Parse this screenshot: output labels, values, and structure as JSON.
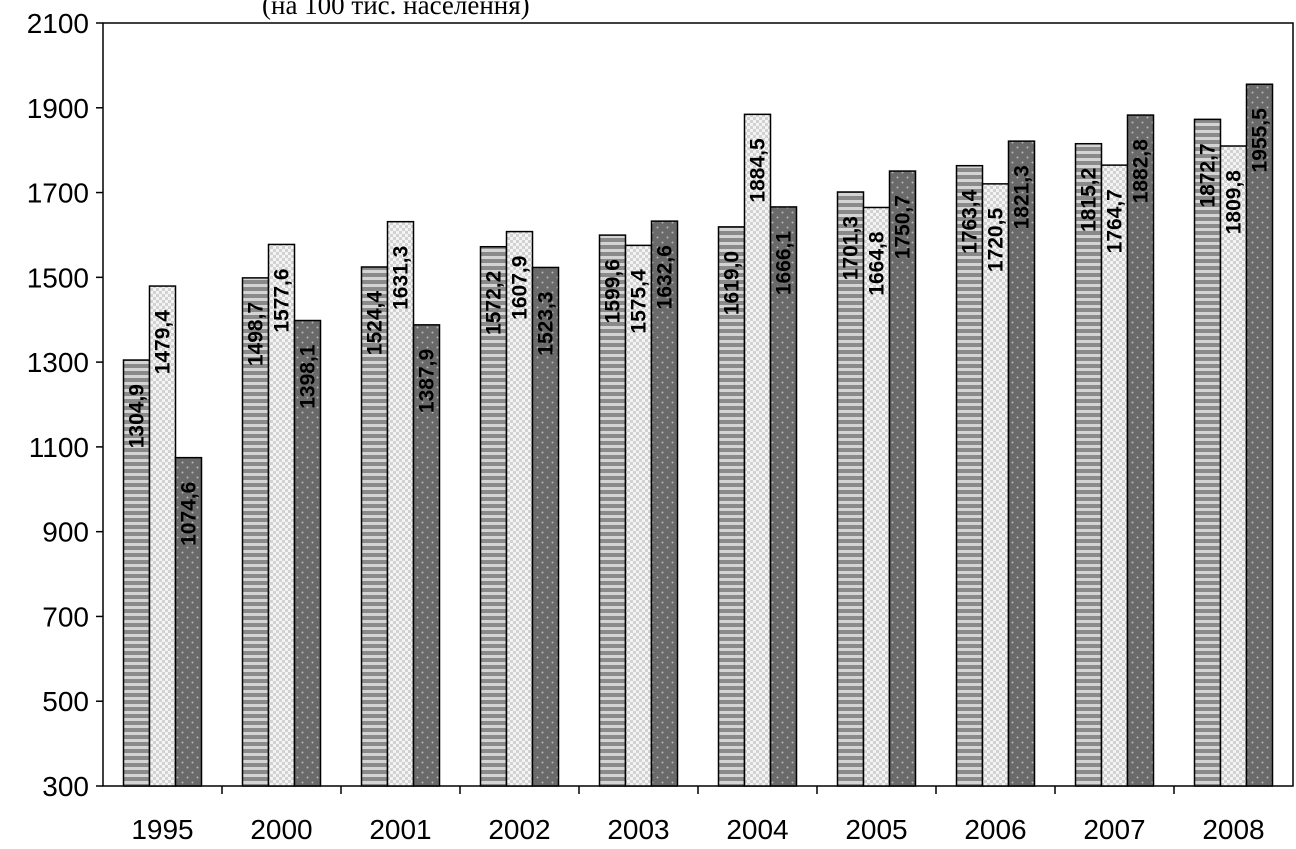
{
  "subtitle": "(на 100 тис. населення)",
  "chart_data": {
    "type": "bar",
    "title": "",
    "subtitle": "(на 100 тис. населення)",
    "xlabel": "",
    "ylabel": "",
    "categories": [
      "1995",
      "2000",
      "2001",
      "2002",
      "2003",
      "2004",
      "2005",
      "2006",
      "2007",
      "2008"
    ],
    "series": [
      {
        "values": [
          1304.9,
          1498.7,
          1524.4,
          1572.2,
          1599.6,
          1619.0,
          1701.3,
          1763.4,
          1815.2,
          1872.7
        ],
        "labels": [
          "1304,9",
          "1498,7",
          "1524,4",
          "1572,2",
          "1599,6",
          "1619,0",
          "1701,3",
          "1763,4",
          "1815,2",
          "1872,7"
        ],
        "pattern": "horizontal-stripes",
        "color": "#9c9c9c"
      },
      {
        "values": [
          1479.4,
          1577.6,
          1631.3,
          1607.9,
          1575.4,
          1884.5,
          1664.8,
          1720.5,
          1764.7,
          1809.8
        ],
        "labels": [
          "1479,4",
          "1577,6",
          "1631,3",
          "1607,9",
          "1575,4",
          "1884,5",
          "1664,8",
          "1720,5",
          "1764,7",
          "1809,8"
        ],
        "pattern": "light-checker",
        "color": "#e6e6e6"
      },
      {
        "values": [
          1074.6,
          1398.1,
          1387.9,
          1523.3,
          1632.6,
          1666.1,
          1750.7,
          1821.3,
          1882.8,
          1955.5
        ],
        "labels": [
          "1074,6",
          "1398,1",
          "1387,9",
          "1523,3",
          "1632,6",
          "1666,1",
          "1750,7",
          "1821,3",
          "1882,8",
          "1955,5"
        ],
        "pattern": "dotted-dark",
        "color": "#6e6e6e"
      }
    ],
    "ylim": [
      300,
      2100
    ],
    "yticks": [
      300,
      500,
      700,
      900,
      1100,
      1300,
      1500,
      1700,
      1900,
      2100
    ],
    "grid": false,
    "legend": "none"
  }
}
